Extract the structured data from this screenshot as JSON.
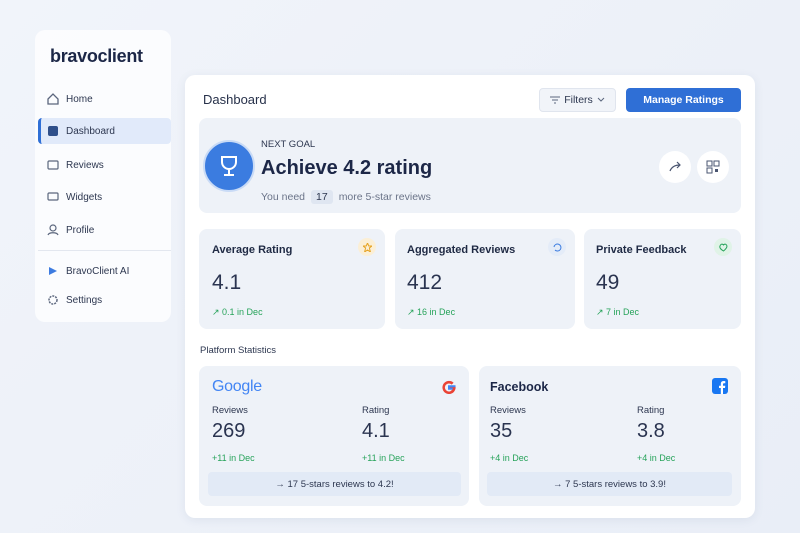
{
  "brand": "bravoclient",
  "nav": [
    "Home",
    "Dashboard",
    "Reviews",
    "Widgets",
    "Profile",
    "BravoClient AI",
    "Settings"
  ],
  "header": {
    "title": "Dashboard",
    "filters": "Filters",
    "action": "Manage Ratings"
  },
  "goal": {
    "label": "NEXT GOAL",
    "title": "Achieve 4.2 rating",
    "prefix": "You need",
    "count": "17",
    "suffix": "more 5-star reviews"
  },
  "stats": [
    {
      "title": "Average Rating",
      "value": "4.1",
      "change": "↗ 0.1 in Dec"
    },
    {
      "title": "Aggregated Reviews",
      "value": "412",
      "change": "↗ 16 in Dec"
    },
    {
      "title": "Private Feedback",
      "value": "49",
      "change": "↗ 7 in Dec"
    }
  ],
  "platform_title": "Platform Statistics",
  "platforms": [
    {
      "name": "Google",
      "reviews_label": "Reviews",
      "reviews": "269",
      "reviews_change": "+11 in Dec",
      "rating_label": "Rating",
      "rating": "4.1",
      "rating_change": "+11 in Dec",
      "cta": "→ 17 5-stars reviews to 4.2!"
    },
    {
      "name": "Facebook",
      "reviews_label": "Reviews",
      "reviews": "35",
      "reviews_change": "+4 in Dec",
      "rating_label": "Rating",
      "rating": "3.8",
      "rating_change": "+4 in Dec",
      "cta": "→ 7 5-stars reviews to 3.9!"
    }
  ]
}
